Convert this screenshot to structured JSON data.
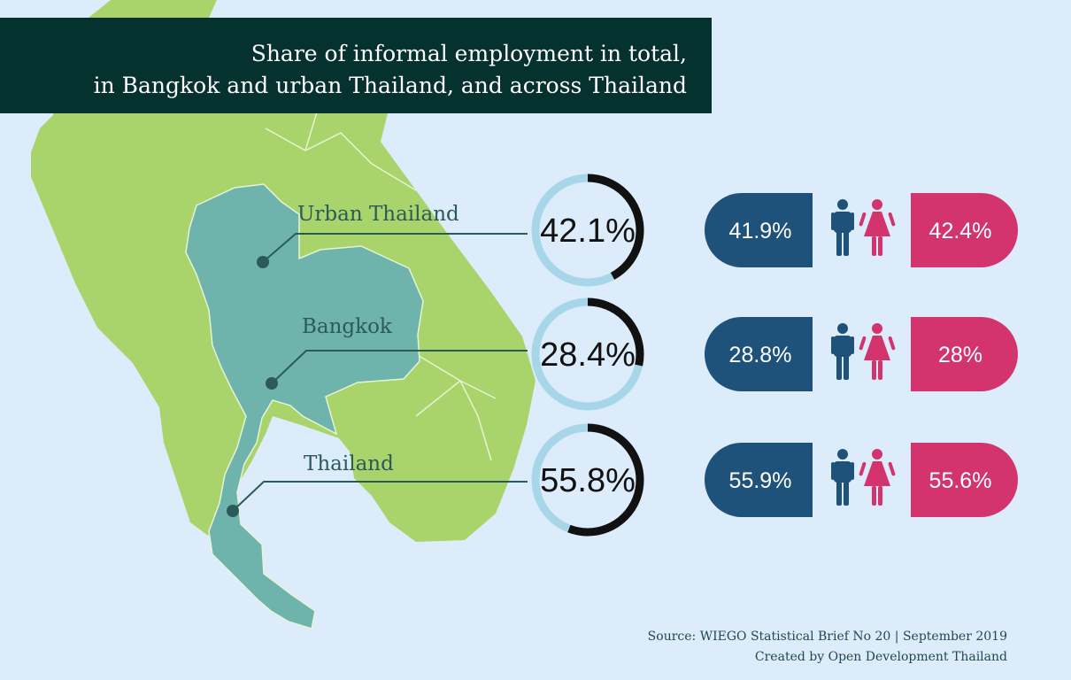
{
  "title": {
    "line1": "Share of informal employment in total,",
    "line2": "in Bangkok and urban Thailand, and across Thailand"
  },
  "source": {
    "line1": "Source: WIEGO Statistical Brief No 20 | September 2019",
    "line2": "Created by Open Development Thailand"
  },
  "colors": {
    "background": "#dcecfa",
    "title_bg": "#05312f",
    "land": "#a9d46c",
    "thailand": "#6fb3ad",
    "ring_track": "#a7d6e8",
    "ring_value": "#111111",
    "male": "#1f527a",
    "female": "#d3346e"
  },
  "icons": {
    "male": "man-icon",
    "female": "woman-icon"
  },
  "chart_data": {
    "type": "donut",
    "unit": "%",
    "categories": [
      "Urban Thailand",
      "Bangkok",
      "Thailand"
    ],
    "values": [
      42.1,
      28.4,
      55.8
    ],
    "labels": [
      "42.1%",
      "28.4%",
      "55.8%"
    ],
    "by_sex": {
      "male": {
        "values": [
          41.9,
          28.8,
          55.9
        ],
        "labels": [
          "41.9%",
          "28.8%",
          "55.9%"
        ]
      },
      "female": {
        "values": [
          42.4,
          28,
          55.6
        ],
        "labels": [
          "42.4%",
          "28%",
          "55.6%"
        ]
      }
    }
  }
}
